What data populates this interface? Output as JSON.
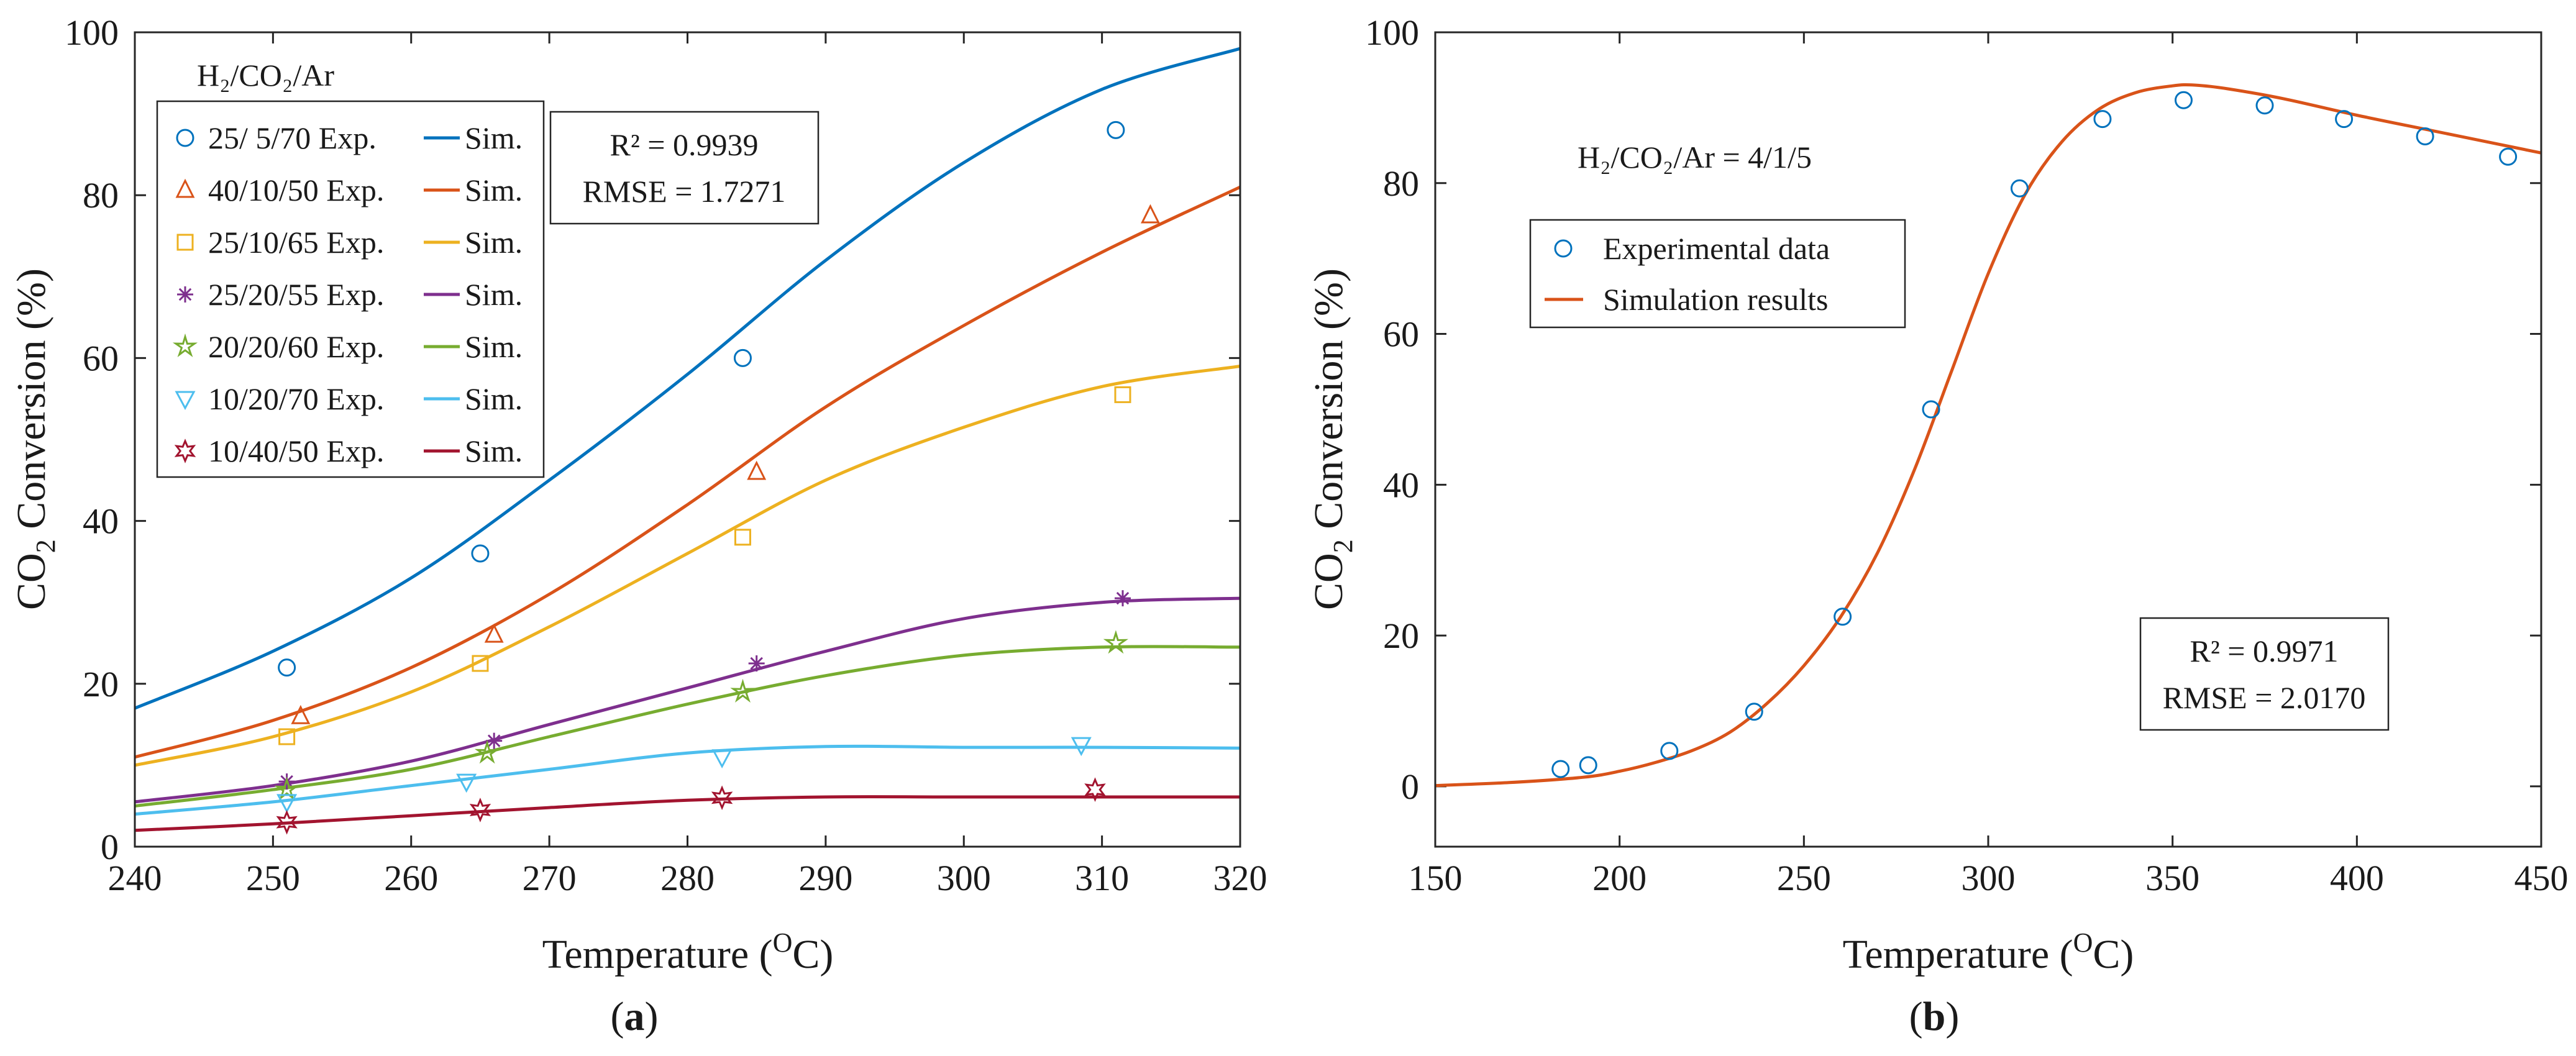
{
  "chart_data": [
    {
      "type": "line",
      "panel_label": "a",
      "xlabel": "Temperature (",
      "xlabel_sup": "O",
      "xlabel_tail": "C)",
      "ylabel_pre": "CO",
      "ylabel_sub": "2",
      "ylabel_post": " Conversion (%)",
      "xlim": [
        240,
        320
      ],
      "ylim": [
        0,
        100
      ],
      "xticks": [
        240,
        250,
        260,
        270,
        280,
        290,
        300,
        310,
        320
      ],
      "yticks": [
        0,
        20,
        40,
        60,
        80,
        100
      ],
      "legend_title": "H₂/CO₂/Ar",
      "legend_sim_label": "Sim.",
      "stats": {
        "r2": "R² = 0.9939",
        "rmse": "RMSE = 1.7271"
      },
      "series": [
        {
          "name": "25/ 5/70 Exp.",
          "color": "#0072BD",
          "marker": "circle",
          "exp_x": [
            251,
            265,
            284,
            311
          ],
          "exp_y": [
            22,
            36,
            60,
            88
          ],
          "sim_x": [
            240,
            250,
            260,
            270,
            280,
            290,
            300,
            310,
            320
          ],
          "sim_y": [
            17,
            24,
            33,
            45,
            58,
            72,
            84,
            93,
            98
          ]
        },
        {
          "name": "40/10/50 Exp.",
          "color": "#D95319",
          "marker": "triangle-up",
          "exp_x": [
            252,
            266,
            285,
            313.5
          ],
          "exp_y": [
            16,
            26,
            46,
            77.5
          ],
          "sim_x": [
            240,
            250,
            260,
            270,
            280,
            290,
            300,
            310,
            320
          ],
          "sim_y": [
            11,
            15.5,
            22,
            31,
            42,
            54,
            64,
            73,
            81
          ]
        },
        {
          "name": "25/10/65 Exp.",
          "color": "#EDB120",
          "marker": "square",
          "exp_x": [
            251,
            265,
            284,
            311.5
          ],
          "exp_y": [
            13.5,
            22.5,
            38,
            55.5
          ],
          "sim_x": [
            240,
            250,
            260,
            270,
            280,
            290,
            300,
            310,
            320
          ],
          "sim_y": [
            10,
            13.5,
            19,
            27,
            36,
            45,
            51.5,
            56.5,
            59
          ]
        },
        {
          "name": "25/20/55 Exp.",
          "color": "#7E2F8E",
          "marker": "asterisk",
          "exp_x": [
            251,
            266,
            285,
            311.5
          ],
          "exp_y": [
            8,
            13,
            22.5,
            30.5
          ],
          "sim_x": [
            240,
            250,
            260,
            270,
            280,
            290,
            300,
            310,
            320
          ],
          "sim_y": [
            5.5,
            7.5,
            10.5,
            15,
            19.5,
            24,
            28,
            30,
            30.5
          ]
        },
        {
          "name": "20/20/60 Exp.",
          "color": "#77AC30",
          "marker": "star",
          "exp_x": [
            251,
            265.5,
            284,
            311
          ],
          "exp_y": [
            7,
            11.5,
            19,
            25
          ],
          "sim_x": [
            240,
            250,
            260,
            270,
            280,
            290,
            300,
            310,
            320
          ],
          "sim_y": [
            5,
            7,
            9.5,
            13.5,
            17.5,
            21,
            23.5,
            24.5,
            24.5
          ]
        },
        {
          "name": "10/20/70 Exp.",
          "color": "#4DBEEE",
          "marker": "triangle-down",
          "exp_x": [
            251,
            264,
            282.5,
            308.5
          ],
          "exp_y": [
            5.5,
            8,
            11,
            12.5
          ],
          "sim_x": [
            240,
            250,
            260,
            270,
            280,
            290,
            300,
            310,
            320
          ],
          "sim_y": [
            4,
            5.5,
            7.5,
            9.5,
            11.5,
            12.3,
            12.2,
            12.2,
            12.1
          ]
        },
        {
          "name": "10/40/50 Exp.",
          "color": "#A2142F",
          "marker": "hexagram",
          "exp_x": [
            251,
            265,
            282.5,
            309.5
          ],
          "exp_y": [
            3,
            4.5,
            6,
            7
          ],
          "sim_x": [
            240,
            250,
            260,
            270,
            280,
            290,
            300,
            310,
            320
          ],
          "sim_y": [
            2,
            2.8,
            3.8,
            4.8,
            5.7,
            6.1,
            6.1,
            6.1,
            6.1
          ]
        }
      ]
    },
    {
      "type": "line",
      "panel_label": "b",
      "xlabel": "Temperature (",
      "xlabel_sup": "O",
      "xlabel_tail": "C)",
      "ylabel_pre": "CO",
      "ylabel_sub": "2",
      "ylabel_post": " Conversion (%)",
      "xlim": [
        150,
        450
      ],
      "ylim": [
        -8,
        100
      ],
      "xticks": [
        150,
        200,
        250,
        300,
        350,
        400,
        450
      ],
      "yticks": [
        0,
        20,
        40,
        60,
        80,
        100
      ],
      "annotation": "H₂/CO₂/Ar = 4/1/5",
      "stats": {
        "r2": "R² = 0.9971",
        "rmse": "RMSE = 2.0170"
      },
      "series": [
        {
          "name": "Experimental data",
          "color": "#0072BD",
          "marker": "circle",
          "x": [
            184,
            191.5,
            213.5,
            236.5,
            260.5,
            284.5,
            308.5,
            331,
            353,
            375,
            396.5,
            418.5,
            441
          ],
          "y": [
            2.3,
            2.8,
            4.7,
            9.9,
            22.5,
            50,
            79.3,
            88.5,
            91,
            90.3,
            88.5,
            86.2,
            83.5
          ]
        },
        {
          "name": "Simulation results",
          "color": "#D95319",
          "marker": "none",
          "x": [
            150,
            170,
            190,
            200,
            210,
            220,
            230,
            240,
            250,
            260,
            270,
            280,
            290,
            300,
            310,
            320,
            330,
            340,
            350,
            356,
            365,
            380,
            400,
            420,
            440,
            450
          ],
          "y": [
            0.1,
            0.5,
            1.2,
            2,
            3.2,
            4.8,
            7.2,
            11,
            16,
            22.5,
            31,
            42,
            55,
            68,
            78.5,
            85.5,
            89.8,
            92,
            92.9,
            93,
            92.5,
            91.2,
            89,
            87,
            85,
            84
          ]
        }
      ]
    }
  ]
}
